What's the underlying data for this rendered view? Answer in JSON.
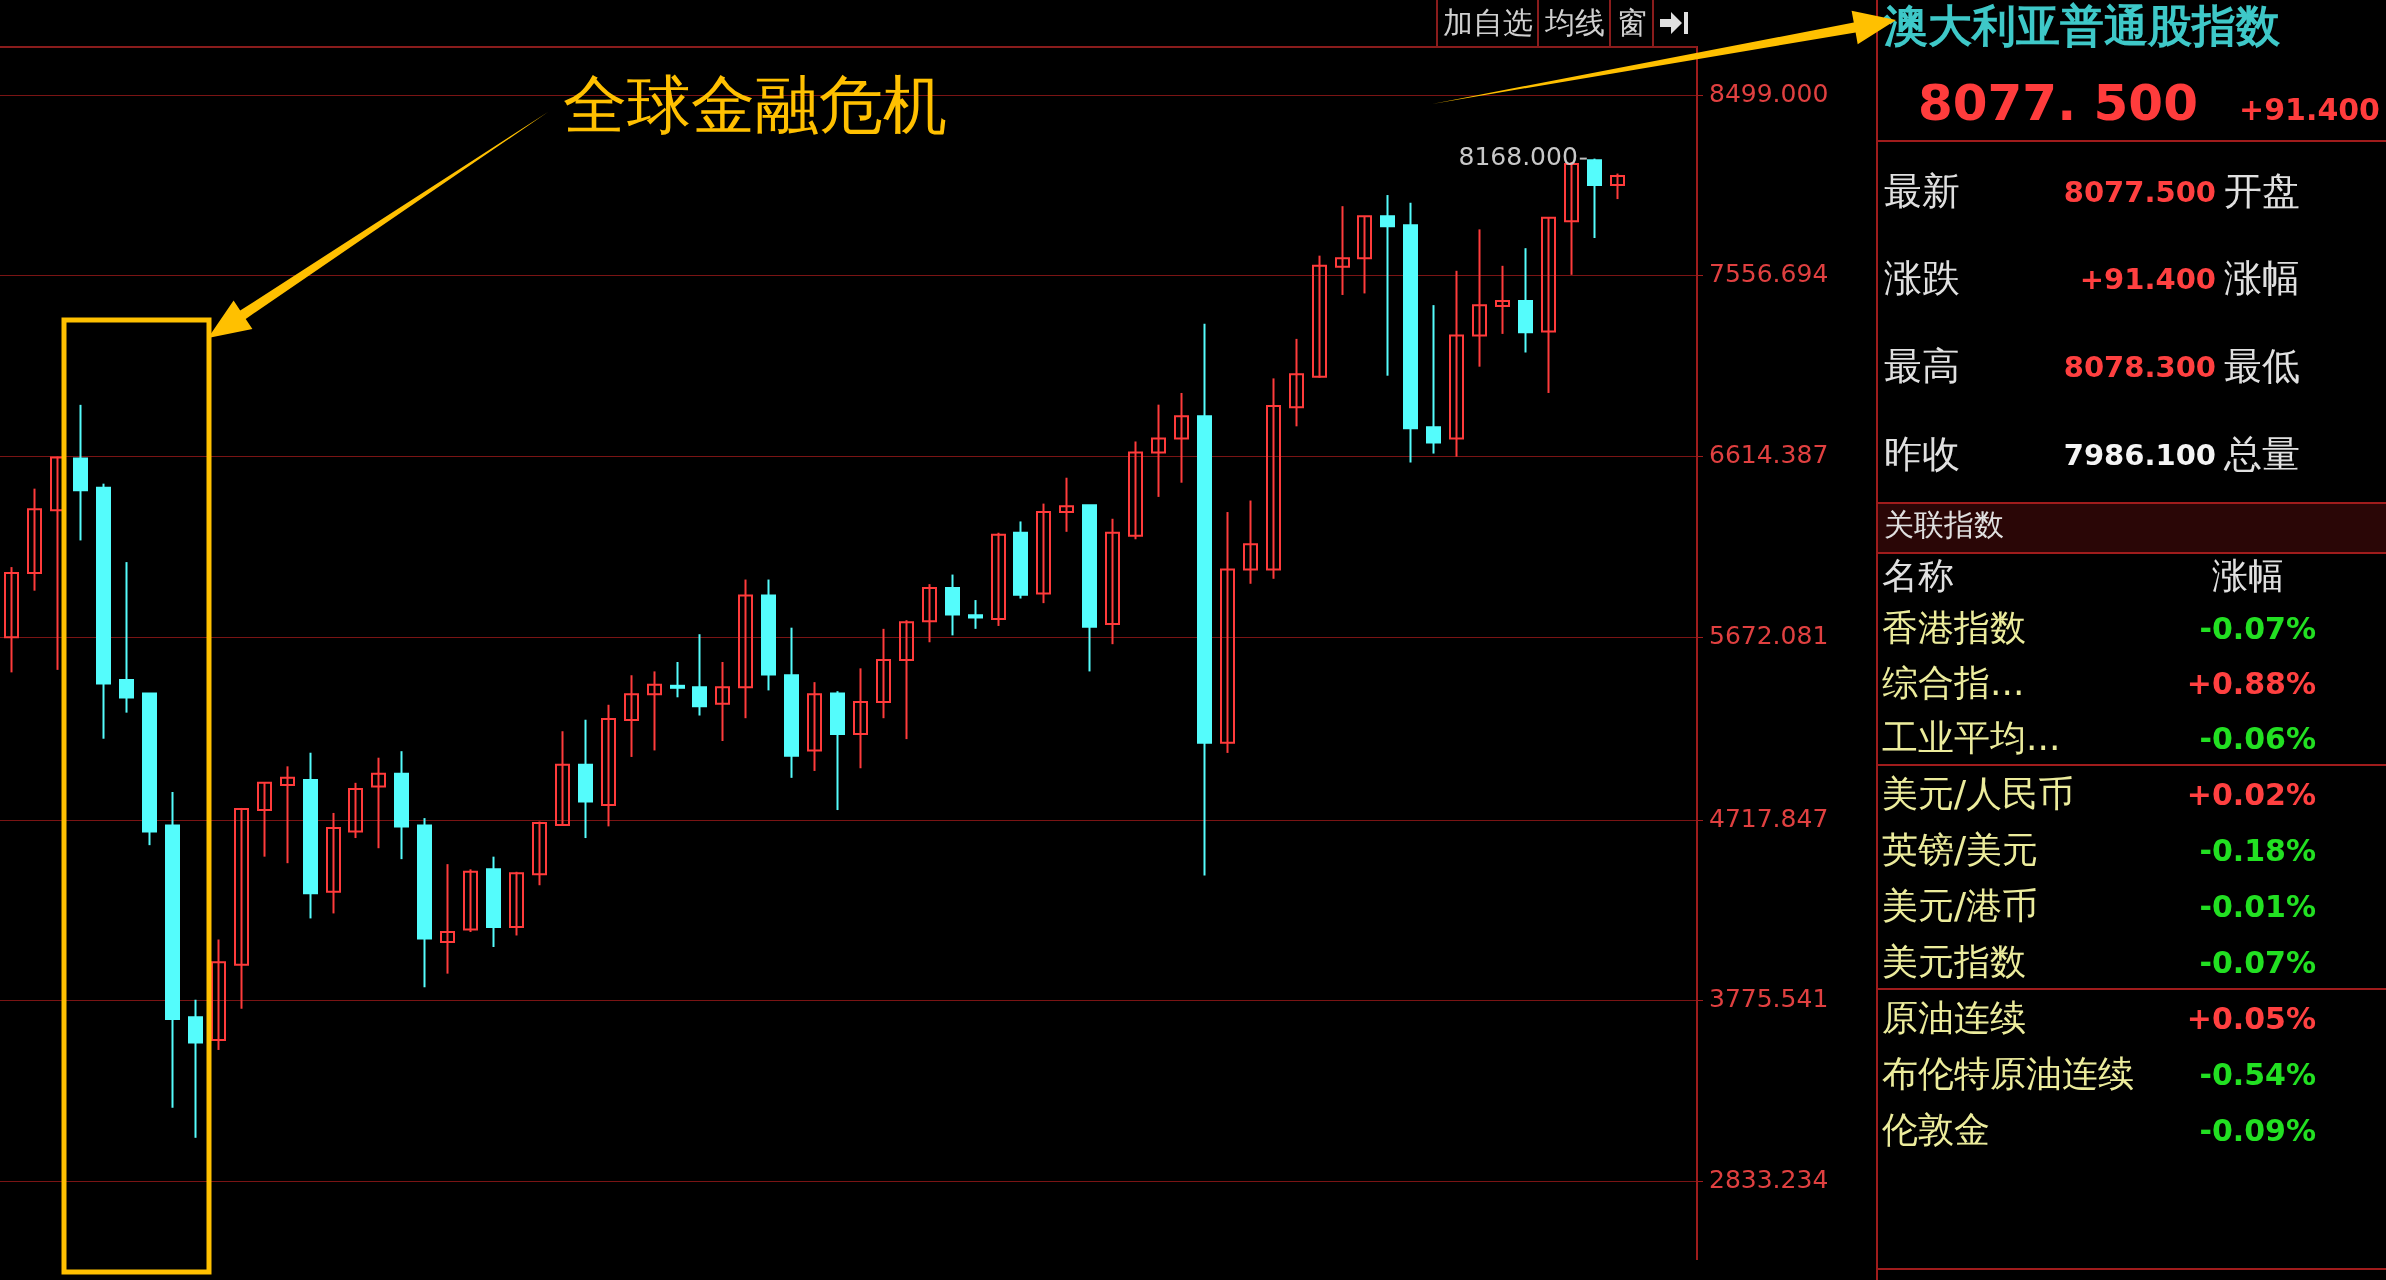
{
  "chart_data": [
    {
      "type": "candlestick",
      "categories": [
        null,
        null,
        null,
        null,
        null,
        null,
        null,
        null,
        null,
        null,
        null,
        null,
        null,
        null,
        null,
        null,
        null,
        null,
        null,
        null,
        null,
        null,
        null,
        null,
        null,
        null,
        null,
        null,
        null,
        null,
        null,
        null,
        null,
        null,
        null,
        null,
        null,
        null,
        null,
        null,
        null,
        null,
        null,
        null,
        null,
        null,
        null,
        null,
        null,
        null,
        null,
        null,
        null,
        null,
        null,
        null,
        null,
        null,
        null,
        null,
        null,
        null,
        null,
        null,
        null,
        null,
        null,
        null,
        null,
        null,
        null
      ],
      "ohlc": [
        [
          5672,
          6038,
          5489,
          6007
        ],
        [
          6007,
          6447,
          5915,
          6339
        ],
        [
          6334,
          6614,
          5502,
          6609
        ],
        [
          6604,
          6884,
          6177,
          6439
        ],
        [
          6452,
          6473,
          5143,
          5431
        ],
        [
          5449,
          6064,
          5279,
          5358
        ],
        [
          5379,
          5379,
          4588,
          4659
        ],
        [
          4690,
          4865,
          3219,
          3682
        ],
        [
          3690,
          3782,
          3062,
          3559
        ],
        [
          3572,
          4096,
          3520,
          3978
        ],
        [
          3965,
          4782,
          3735,
          4777
        ],
        [
          4771,
          4913,
          4528,
          4913
        ],
        [
          4902,
          4999,
          4494,
          4939
        ],
        [
          4928,
          5070,
          4206,
          4337
        ],
        [
          4345,
          4756,
          4232,
          4677
        ],
        [
          4659,
          4913,
          4625,
          4881
        ],
        [
          4894,
          5044,
          4572,
          4960
        ],
        [
          4960,
          5078,
          4515,
          4685
        ],
        [
          4690,
          4729,
          3847,
          4101
        ],
        [
          4083,
          4489,
          3918,
          4135
        ],
        [
          4148,
          4462,
          4135,
          4449
        ],
        [
          4462,
          4528,
          4057,
          4161
        ],
        [
          4161,
          4449,
          4117,
          4441
        ],
        [
          4436,
          4711,
          4379,
          4703
        ],
        [
          4693,
          5182,
          4693,
          5007
        ],
        [
          5007,
          5242,
          4625,
          4816
        ],
        [
          4797,
          5320,
          4686,
          5246
        ],
        [
          5240,
          5474,
          5048,
          5375
        ],
        [
          5375,
          5494,
          5082,
          5424
        ],
        [
          5419,
          5543,
          5359,
          5411
        ],
        [
          5411,
          5688,
          5264,
          5312
        ],
        [
          5325,
          5543,
          5131,
          5411
        ],
        [
          5411,
          5973,
          5250,
          5890
        ],
        [
          5890,
          5973,
          5395,
          5478
        ],
        [
          5474,
          5722,
          4939,
          5054
        ],
        [
          5082,
          5438,
          4975,
          5375
        ],
        [
          5379,
          5391,
          4771,
          5167
        ],
        [
          5167,
          5510,
          4989,
          5335
        ],
        [
          5335,
          5716,
          5250,
          5553
        ],
        [
          5553,
          5761,
          5141,
          5751
        ],
        [
          5755,
          5949,
          5646,
          5929
        ],
        [
          5929,
          5999,
          5682,
          5791
        ],
        [
          5787,
          5866,
          5716,
          5775
        ],
        [
          5767,
          6217,
          5731,
          6207
        ],
        [
          6217,
          6276,
          5874,
          5894
        ],
        [
          5900,
          6369,
          5850,
          6325
        ],
        [
          6325,
          6504,
          6222,
          6355
        ],
        [
          6361,
          6361,
          5494,
          5727
        ],
        [
          5741,
          6290,
          5636,
          6217
        ],
        [
          6201,
          6693,
          6183,
          6635
        ],
        [
          6635,
          6885,
          6404,
          6709
        ],
        [
          6709,
          6946,
          6478,
          6825
        ],
        [
          6825,
          7307,
          4430,
          5122
        ],
        [
          5122,
          6325,
          5069,
          6025
        ],
        [
          6025,
          6385,
          5951,
          6157
        ],
        [
          6025,
          7022,
          5977,
          6878
        ],
        [
          6872,
          7228,
          6772,
          7043
        ],
        [
          7030,
          7662,
          7025,
          7609
        ],
        [
          7604,
          7920,
          7457,
          7649
        ],
        [
          7649,
          7867,
          7465,
          7867
        ],
        [
          7867,
          7978,
          7036,
          7815
        ],
        [
          7820,
          7938,
          6583,
          6762
        ],
        [
          6767,
          7404,
          6630,
          6688
        ],
        [
          6709,
          7583,
          6614,
          7246
        ],
        [
          7246,
          7799,
          7083,
          7404
        ],
        [
          7399,
          7609,
          7254,
          7425
        ],
        [
          7425,
          7701,
          7157,
          7262
        ],
        [
          7267,
          7859,
          6946,
          7859
        ],
        [
          7841,
          8150,
          7562,
          8140
        ],
        [
          8160,
          8168,
          7754,
          8030
        ],
        [
          8030,
          8090,
          7957,
          8077.5
        ]
      ],
      "colors": [
        "#ff3b3b",
        "#ff3b3b",
        "#ff3b3b",
        "#54fcfc",
        "#54fcfc",
        "#54fcfc",
        "#54fcfc",
        "#54fcfc",
        "#54fcfc",
        "#ff3b3b",
        "#ff3b3b",
        "#ff3b3b",
        "#ff3b3b",
        "#54fcfc",
        "#ff3b3b",
        "#ff3b3b",
        "#ff3b3b",
        "#54fcfc",
        "#54fcfc",
        "#ff3b3b",
        "#ff3b3b",
        "#54fcfc",
        "#ff3b3b",
        "#ff3b3b",
        "#ff3b3b",
        "#54fcfc",
        "#ff3b3b",
        "#ff3b3b",
        "#ff3b3b",
        "#54fcfc",
        "#54fcfc",
        "#ff3b3b",
        "#ff3b3b",
        "#54fcfc",
        "#54fcfc",
        "#ff3b3b",
        "#54fcfc",
        "#ff3b3b",
        "#ff3b3b",
        "#ff3b3b",
        "#ff3b3b",
        "#54fcfc",
        "#54fcfc",
        "#ff3b3b",
        "#54fcfc",
        "#ff3b3b",
        "#ff3b3b",
        "#54fcfc",
        "#ff3b3b",
        "#ff3b3b",
        "#ff3b3b",
        "#ff3b3b",
        "#54fcfc",
        "#ff3b3b",
        "#ff3b3b",
        "#ff3b3b",
        "#ff3b3b",
        "#ff3b3b",
        "#ff3b3b",
        "#ff3b3b",
        "#54fcfc",
        "#54fcfc",
        "#54fcfc",
        "#ff3b3b",
        "#ff3b3b",
        "#ff3b3b",
        "#54fcfc",
        "#ff3b3b",
        "#ff3b3b",
        "#54fcfc",
        "#ff3b3b"
      ],
      "ylim": [
        2430,
        8750
      ],
      "yticks": [
        {
          "value": 2833.234,
          "label": "2833.234"
        },
        {
          "value": 3775.541,
          "label": "3775.541"
        },
        {
          "value": 4717.847,
          "label": "4717.847"
        },
        {
          "value": 5672.081,
          "label": "5672.081"
        },
        {
          "value": 6614.387,
          "label": "6614.387"
        },
        {
          "value": 7556.694,
          "label": "7556.694"
        },
        {
          "value": 8499,
          "label": "8499.000"
        }
      ],
      "grid": "y",
      "tick_labels": "y",
      "annotations": [
        "全球金融危机",
        "8168.000",
        "加自选",
        "均线",
        "窗"
      ]
    },
    {
      "type": "other",
      "title": "澳大利亚普通股指数",
      "annotations": [
        "8077. 500",
        "+91.400",
        "最新",
        "8077.500",
        "开盘",
        "涨跌",
        "+91.400",
        "涨幅",
        "最高",
        "8078.300",
        "最低",
        "昨收",
        "7986.100",
        "总量",
        "关联指数",
        "名称",
        "涨幅",
        "香港指数",
        "-0.07%",
        "综合指...",
        "+0.88%",
        "工业平均...",
        "-0.06%",
        "美元/人民币",
        "+0.02%",
        "英镑/美元",
        "-0.18%",
        "美元/港币",
        "-0.01%",
        "美元指数",
        "-0.07%",
        "原油连续",
        "+0.05%",
        "布伦特原油连续",
        "-0.54%",
        "伦敦金",
        "-0.09%"
      ]
    }
  ]
}
